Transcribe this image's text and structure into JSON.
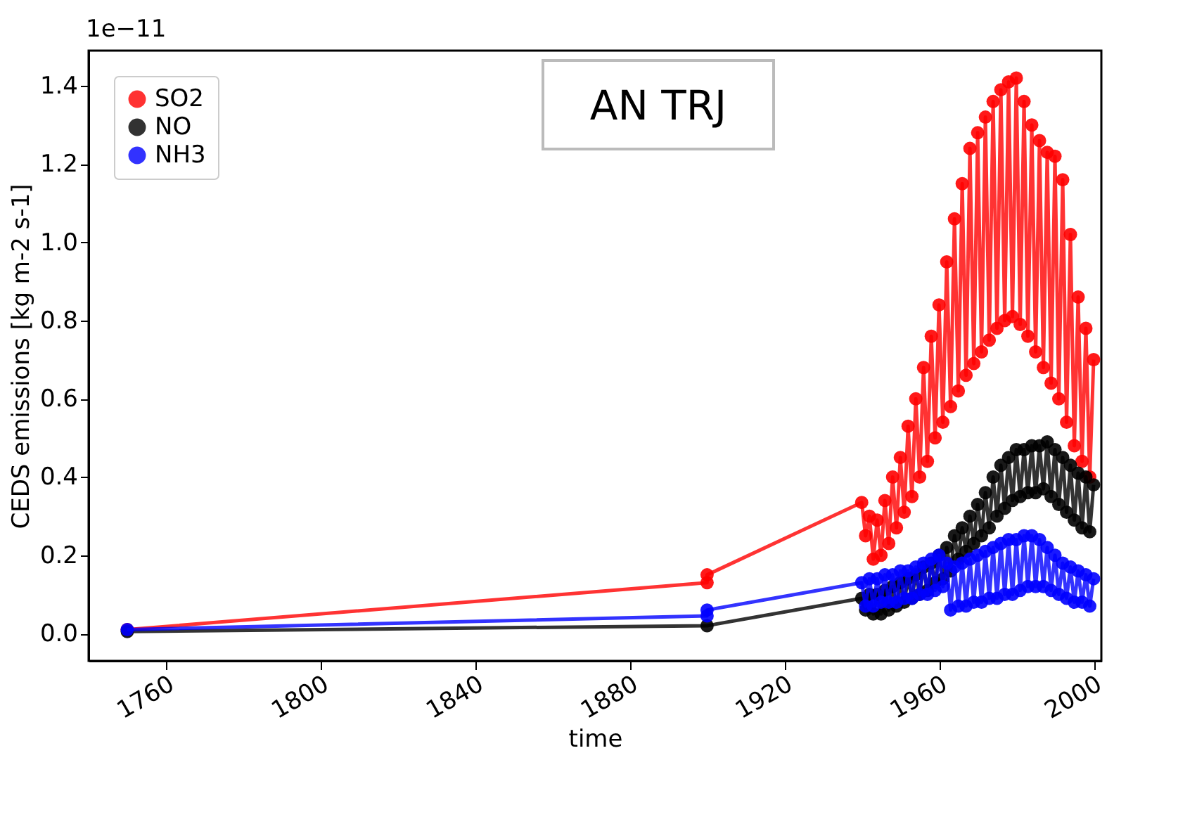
{
  "chart_data": {
    "type": "line",
    "title": "AN TRJ",
    "xlabel": "time",
    "ylabel": "CEDS emissions [kg m-2 s-1]",
    "annotations": [
      "1e−11"
    ],
    "xlim": [
      1740,
      2002
    ],
    "ylim": [
      -0.07,
      1.49
    ],
    "xticks": [
      1760,
      1800,
      1840,
      1880,
      1920,
      1960,
      2000
    ],
    "yticks": [
      {
        "value": 0,
        "label": "0.0"
      },
      {
        "value": 0.2,
        "label": "0.2"
      },
      {
        "value": 0.4,
        "label": "0.4"
      },
      {
        "value": 0.6,
        "label": "0.6"
      },
      {
        "value": 0.8,
        "label": "0.8"
      },
      {
        "value": 1.0,
        "label": "1.0"
      },
      {
        "value": 1.2,
        "label": "1.2"
      },
      {
        "value": 1.4,
        "label": "1.4"
      }
    ],
    "grid": false,
    "legend": "top left",
    "marker": "circle",
    "line_style": "solid",
    "series": [
      {
        "name": "SO2",
        "color": "#ff0000",
        "x": [
          1750,
          1900,
          1900,
          1940,
          1941,
          1942,
          1943,
          1944,
          1945,
          1946,
          1947,
          1948,
          1949,
          1950,
          1951,
          1952,
          1953,
          1954,
          1955,
          1956,
          1957,
          1958,
          1959,
          1960,
          1961,
          1962,
          1963,
          1964,
          1965,
          1966,
          1967,
          1968,
          1969,
          1970,
          1971,
          1972,
          1973,
          1974,
          1975,
          1976,
          1977,
          1978,
          1979,
          1980,
          1981,
          1982,
          1983,
          1984,
          1985,
          1986,
          1987,
          1988,
          1989,
          1990,
          1991,
          1992,
          1993,
          1994,
          1995,
          1996,
          1997,
          1998,
          1999,
          2000
        ],
        "values": [
          0.01,
          0.13,
          0.15,
          0.335,
          0.25,
          0.3,
          0.19,
          0.29,
          0.2,
          0.34,
          0.23,
          0.4,
          0.27,
          0.45,
          0.31,
          0.53,
          0.35,
          0.6,
          0.4,
          0.68,
          0.44,
          0.76,
          0.5,
          0.84,
          0.54,
          0.95,
          0.58,
          1.06,
          0.62,
          1.15,
          0.66,
          1.24,
          0.69,
          1.28,
          0.72,
          1.32,
          0.75,
          1.36,
          0.78,
          1.39,
          0.8,
          1.41,
          0.81,
          1.42,
          0.79,
          1.36,
          0.76,
          1.3,
          0.72,
          1.26,
          0.68,
          1.23,
          0.64,
          1.22,
          0.6,
          1.16,
          0.54,
          1.02,
          0.48,
          0.86,
          0.44,
          0.78,
          0.4,
          0.7
        ]
      },
      {
        "name": "NO",
        "color": "#000000",
        "x": [
          1750,
          1900,
          1940,
          1941,
          1942,
          1943,
          1944,
          1945,
          1946,
          1947,
          1948,
          1949,
          1950,
          1951,
          1952,
          1953,
          1954,
          1955,
          1956,
          1957,
          1958,
          1959,
          1960,
          1961,
          1962,
          1963,
          1964,
          1965,
          1966,
          1967,
          1968,
          1969,
          1970,
          1971,
          1972,
          1973,
          1974,
          1975,
          1976,
          1977,
          1978,
          1979,
          1980,
          1981,
          1982,
          1983,
          1984,
          1985,
          1986,
          1987,
          1988,
          1989,
          1990,
          1991,
          1992,
          1993,
          1994,
          1995,
          1996,
          1997,
          1998,
          1999,
          2000
        ],
        "values": [
          0.005,
          0.02,
          0.09,
          0.06,
          0.1,
          0.05,
          0.1,
          0.05,
          0.11,
          0.06,
          0.12,
          0.07,
          0.13,
          0.08,
          0.14,
          0.09,
          0.15,
          0.1,
          0.17,
          0.11,
          0.18,
          0.13,
          0.2,
          0.14,
          0.22,
          0.16,
          0.25,
          0.19,
          0.27,
          0.21,
          0.3,
          0.23,
          0.33,
          0.25,
          0.36,
          0.27,
          0.4,
          0.3,
          0.43,
          0.32,
          0.45,
          0.34,
          0.47,
          0.35,
          0.47,
          0.36,
          0.48,
          0.36,
          0.48,
          0.37,
          0.49,
          0.35,
          0.47,
          0.33,
          0.45,
          0.31,
          0.43,
          0.29,
          0.41,
          0.27,
          0.4,
          0.26,
          0.38
        ]
      },
      {
        "name": "NH3",
        "color": "#0000ff",
        "x": [
          1750,
          1900,
          1900,
          1940,
          1941,
          1942,
          1943,
          1944,
          1945,
          1946,
          1947,
          1948,
          1949,
          1950,
          1951,
          1952,
          1953,
          1954,
          1955,
          1956,
          1957,
          1958,
          1959,
          1960,
          1961,
          1962,
          1963,
          1964,
          1965,
          1966,
          1967,
          1968,
          1969,
          1970,
          1971,
          1972,
          1973,
          1974,
          1975,
          1976,
          1977,
          1978,
          1979,
          1980,
          1981,
          1982,
          1983,
          1984,
          1985,
          1986,
          1987,
          1988,
          1989,
          1990,
          1991,
          1992,
          1993,
          1994,
          1995,
          1996,
          1997,
          1998,
          1999,
          2000
        ],
        "values": [
          0.01,
          0.045,
          0.06,
          0.13,
          0.07,
          0.14,
          0.07,
          0.14,
          0.08,
          0.15,
          0.08,
          0.15,
          0.08,
          0.16,
          0.09,
          0.16,
          0.09,
          0.17,
          0.1,
          0.18,
          0.1,
          0.19,
          0.11,
          0.2,
          0.12,
          0.18,
          0.06,
          0.17,
          0.07,
          0.18,
          0.07,
          0.19,
          0.08,
          0.2,
          0.08,
          0.21,
          0.09,
          0.22,
          0.09,
          0.23,
          0.1,
          0.24,
          0.1,
          0.24,
          0.11,
          0.25,
          0.12,
          0.25,
          0.12,
          0.24,
          0.12,
          0.22,
          0.11,
          0.2,
          0.1,
          0.18,
          0.09,
          0.17,
          0.08,
          0.16,
          0.08,
          0.15,
          0.07,
          0.14
        ]
      }
    ]
  }
}
